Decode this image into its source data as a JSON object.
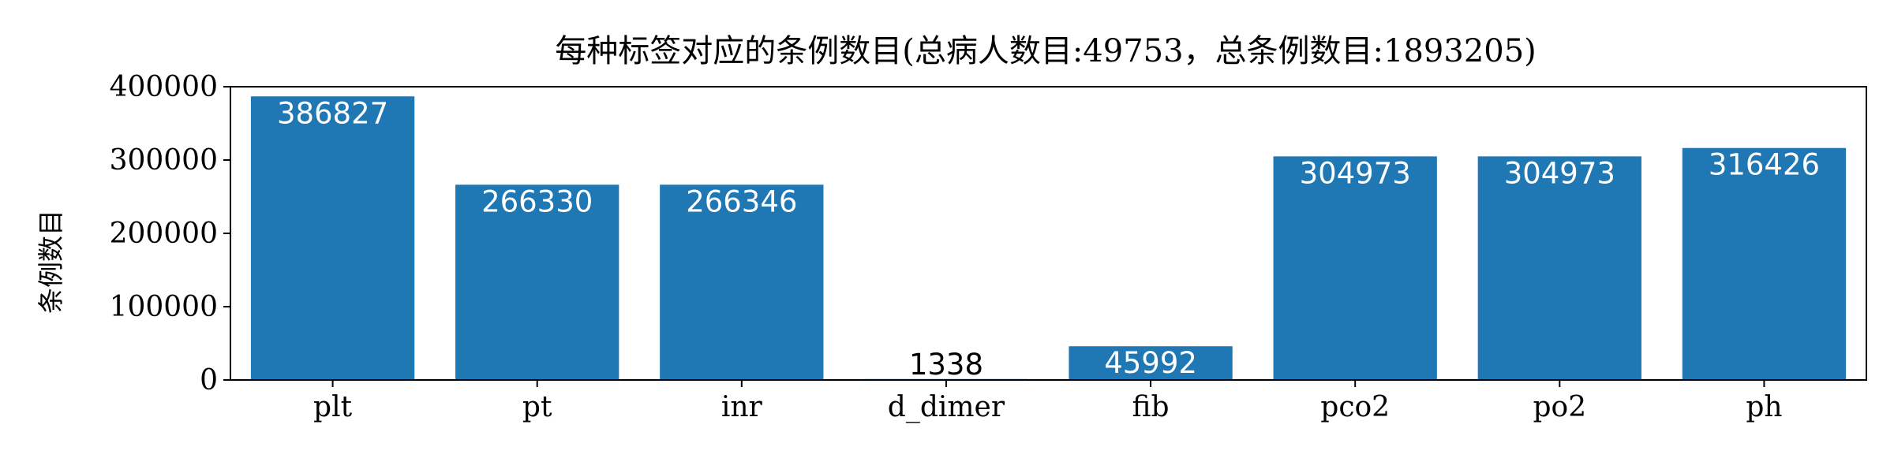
{
  "chart_data": {
    "type": "bar",
    "title": "每种标签对应的条例数目(总病人数目:49753，总条例数目:1893205)",
    "xlabel": "",
    "ylabel": "条例数目",
    "categories": [
      "plt",
      "pt",
      "inr",
      "d_dimer",
      "fib",
      "pco2",
      "po2",
      "ph"
    ],
    "values": [
      386827,
      266330,
      266346,
      1338,
      45992,
      304973,
      304973,
      316426
    ],
    "value_labels": [
      "386827",
      "266330",
      "266346",
      "1338",
      "45992",
      "304973",
      "304973",
      "316426"
    ],
    "yticks": [
      0,
      100000,
      200000,
      300000,
      400000
    ],
    "ytick_labels": [
      "0",
      "100000",
      "200000",
      "300000",
      "400000"
    ],
    "ylim": [
      0,
      400000
    ],
    "bar_color": "#1f77b4",
    "label_inside_color": "#ffffff",
    "label_outside_color": "#000000",
    "grid": false,
    "legend": "none"
  }
}
